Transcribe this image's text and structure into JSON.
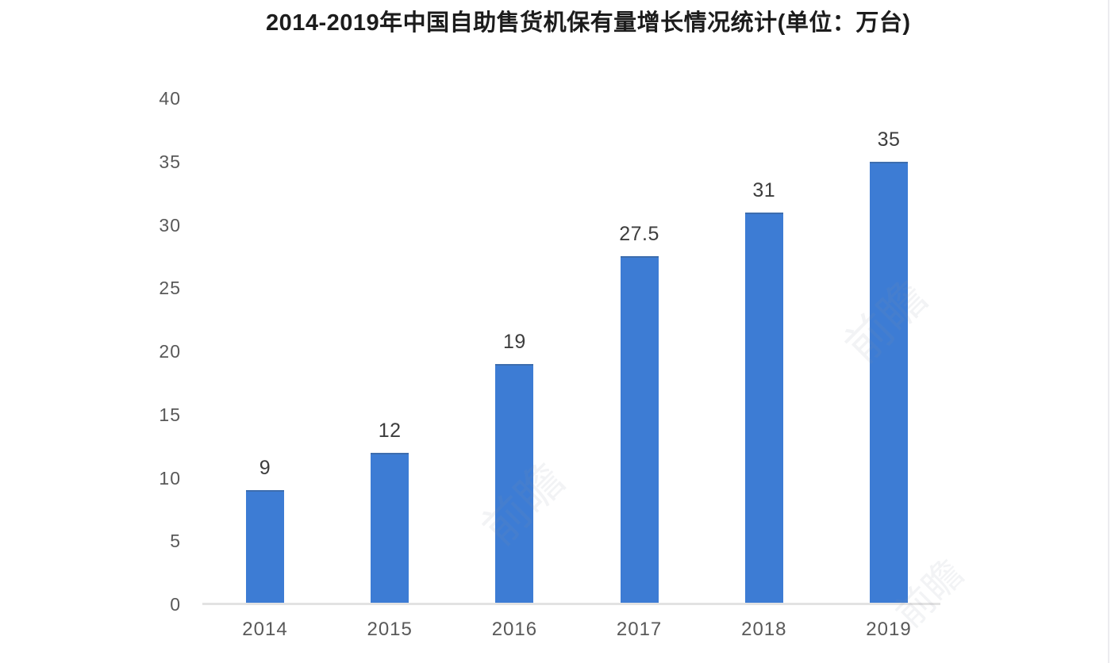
{
  "chart_data": {
    "type": "bar",
    "title": "2014-2019年中国自助售货机保有量增长情况统计(单位：万台)",
    "categories": [
      "2014",
      "2015",
      "2016",
      "2017",
      "2018",
      "2019"
    ],
    "values": [
      9,
      12,
      19,
      27.5,
      31,
      35
    ],
    "value_labels": [
      "9",
      "12",
      "19",
      "27.5",
      "31",
      "35"
    ],
    "xlabel": "",
    "ylabel": "",
    "ylim": [
      0,
      40
    ],
    "yticks": [
      0,
      5,
      10,
      15,
      20,
      25,
      30,
      35,
      40
    ],
    "grid": false,
    "legend_position": "none",
    "bar_color": "#3d7cd4",
    "axis_line_color": "#e2e2e2",
    "tick_label_color": "#595959",
    "value_label_color": "#3d3d3d",
    "title_color": "#1c1c1c"
  },
  "watermark": {
    "text": "前瞻"
  }
}
